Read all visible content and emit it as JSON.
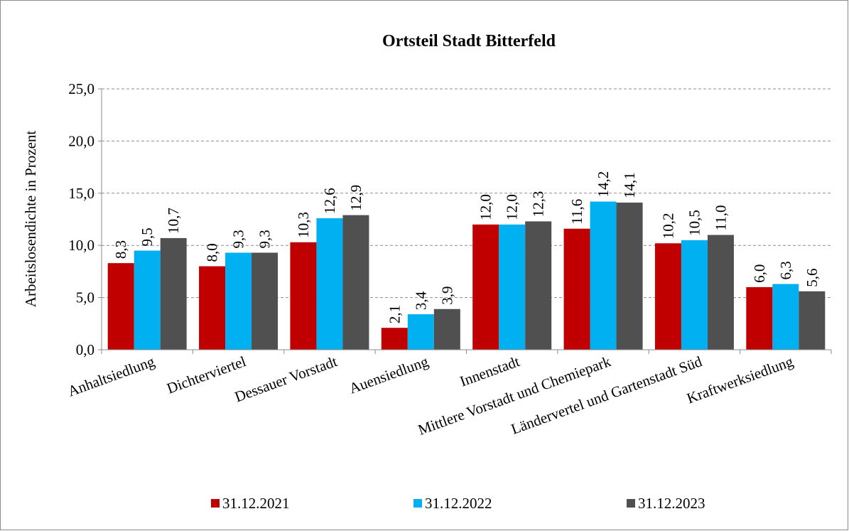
{
  "chart_data": {
    "type": "bar",
    "title": "Ortsteil Stadt Bitterfeld",
    "y_label": "Arbeitslosendichte in Prozent",
    "categories": [
      "Anhaltsiedlung",
      "Dichterviertel",
      "Dessauer Vorstadt",
      "Auensiedlung",
      "Innenstadt",
      "Mittlere Vorstadt und Chemiepark",
      "Ländervertel und Gartenstadt Süd",
      "Kraftwerksiedlung"
    ],
    "series": [
      {
        "name": "31.12.2021",
        "color": "#c00000",
        "values": [
          8.3,
          8.0,
          10.3,
          2.1,
          12.0,
          11.6,
          10.2,
          6.0
        ],
        "value_labels": [
          "8,3",
          "8,0",
          "10,3",
          "2,1",
          "12,0",
          "11,6",
          "10,2",
          "6,0"
        ]
      },
      {
        "name": "31.12.2022",
        "color": "#00b0f0",
        "values": [
          9.5,
          9.3,
          12.6,
          3.4,
          12.0,
          14.2,
          10.5,
          6.3
        ],
        "value_labels": [
          "9,5",
          "9,3",
          "12,6",
          "3,4",
          "12,0",
          "14,2",
          "10,5",
          "6,3"
        ]
      },
      {
        "name": "31.12.2023",
        "color": "#505050",
        "values": [
          10.7,
          9.3,
          12.9,
          3.9,
          12.3,
          14.1,
          11.0,
          5.6
        ],
        "value_labels": [
          "10,7",
          "9,3",
          "12,9",
          "3,9",
          "12,3",
          "14,1",
          "11,0",
          "5,6"
        ]
      }
    ],
    "ylim": [
      0,
      25
    ],
    "yticks": [
      {
        "value": 0,
        "label": "0,0"
      },
      {
        "value": 5,
        "label": "5,0"
      },
      {
        "value": 10,
        "label": "10,0"
      },
      {
        "value": 15,
        "label": "15,0"
      },
      {
        "value": 20,
        "label": "20,0"
      },
      {
        "value": 25,
        "label": "25,0"
      }
    ],
    "grid": true,
    "legend": "bottom"
  }
}
